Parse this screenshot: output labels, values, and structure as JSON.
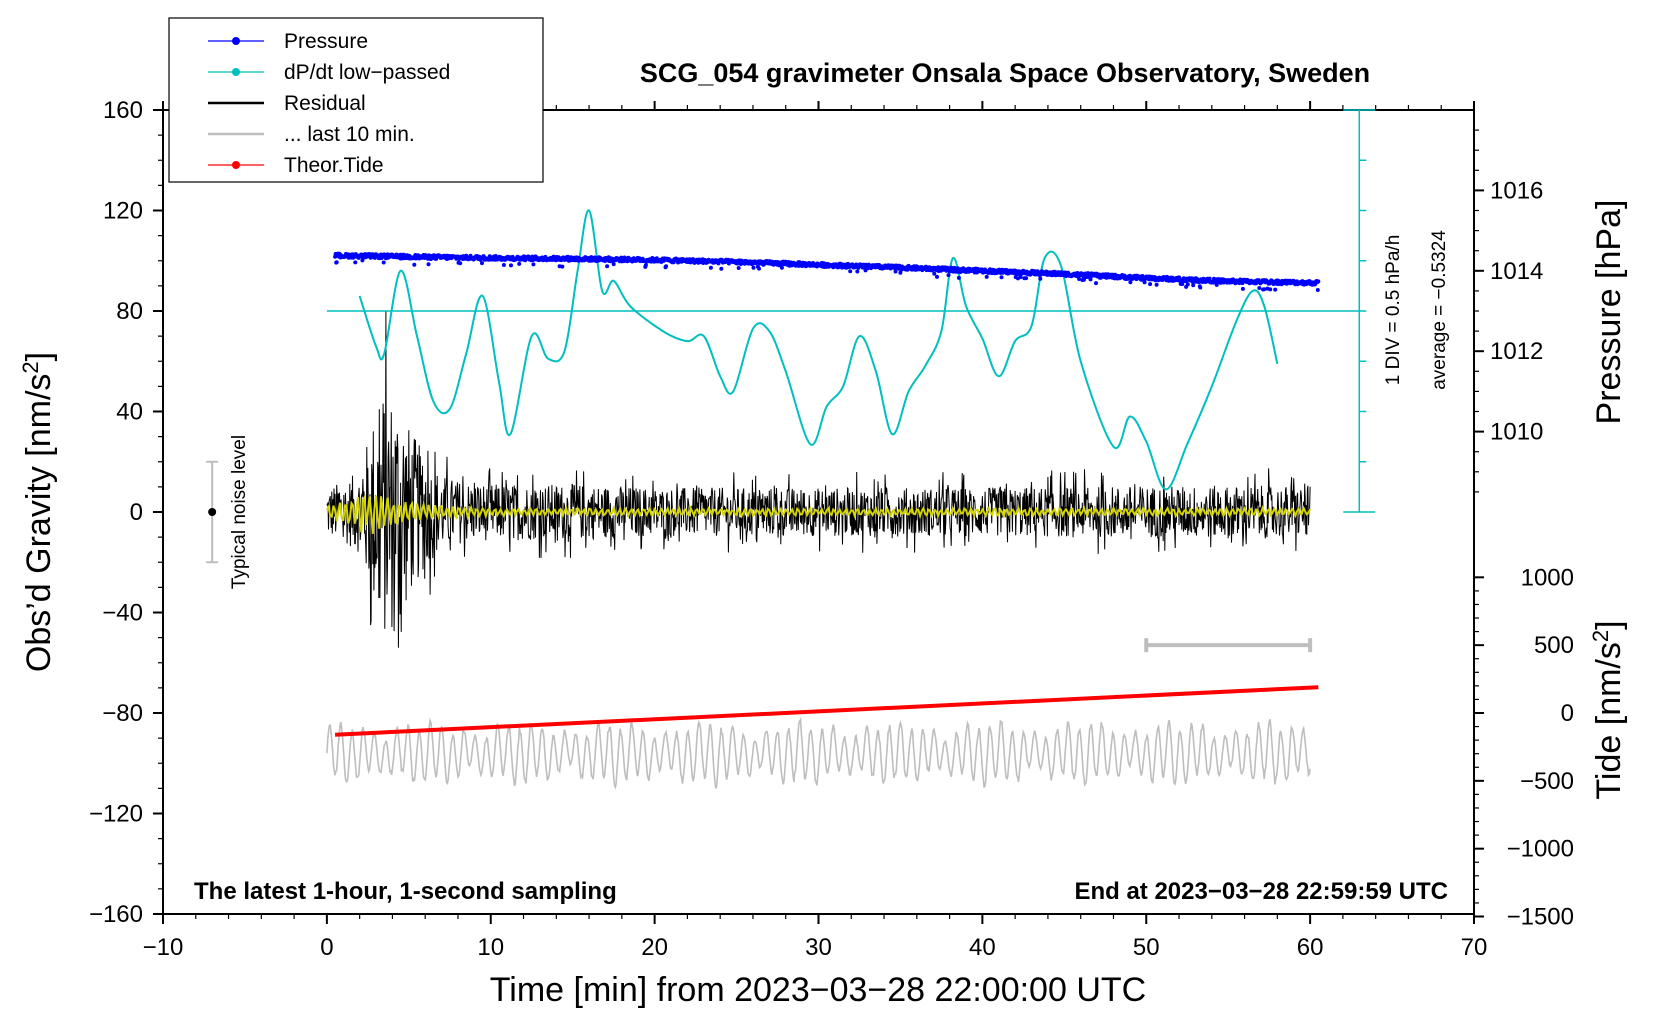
{
  "chart_data": {
    "type": "line",
    "title": "SCG_054 gravimeter Onsala Space Observatory, Sweden",
    "xlabel": "Time [min] from 2023−03−28 22:00:00 UTC",
    "ylabel_left_prefix": "Obs’d Gravity [nm/s",
    "ylabel_right_pressure": "Pressure [hPa]",
    "ylabel_right_tide_prefix": "Tide [nm/s",
    "unit_superscript": "2",
    "unit_suffix": "]",
    "xlim": [
      -10,
      70
    ],
    "ylim_left": [
      -160,
      160
    ],
    "x_ticks": [
      -10,
      0,
      10,
      20,
      30,
      40,
      50,
      60,
      70
    ],
    "x_tick_labels": [
      "−10",
      "0",
      "10",
      "20",
      "30",
      "40",
      "50",
      "60",
      "70"
    ],
    "y_left_ticks": [
      160,
      120,
      80,
      40,
      0,
      -40,
      -80,
      -120,
      -160
    ],
    "y_left_tick_labels": [
      "160",
      "120",
      "80",
      "40",
      "0",
      "−40",
      "−80",
      "−120",
      "−160"
    ],
    "pressure_axis": {
      "ticks": [
        1016,
        1014,
        1012,
        1010
      ],
      "tick_labels": [
        "1016",
        "1014",
        "1012",
        "1010"
      ],
      "map": {
        "hpa_ref": 1014,
        "gravity_at_ref": 96,
        "nm_per_hpa": 16
      }
    },
    "tide_axis": {
      "ticks": [
        1000,
        500,
        0,
        -500,
        -1000,
        -1500
      ],
      "tick_labels": [
        "1000",
        "500",
        "0",
        "−500",
        "−1000",
        "−1500"
      ],
      "map": {
        "tide_ref": 0,
        "gravity_at_ref": -80,
        "per_500": 27
      }
    },
    "bottom_left_note": "The latest 1-hour, 1-second sampling",
    "bottom_right_note": "End at 2023−03−28 22:59:59 UTC",
    "noise_label": "Typical noise level",
    "noise_level": {
      "x": -7,
      "center": 0,
      "half_range": 20
    },
    "dpdt_scale_label": "1 DIV = 0.5 hPa/h",
    "dpdt_average_label": "average = −0.5324",
    "dpdt_reference_level": 80,
    "dpdt_scale": {
      "x": 63,
      "top": 160,
      "bottom": 0,
      "div": 10
    },
    "last10_bar": {
      "x_start": 50,
      "x_end": 60,
      "y": -53
    },
    "legend": [
      {
        "label": "Pressure",
        "color": "#0000ff",
        "style": "line-dot"
      },
      {
        "label": "dP/dt low−passed",
        "color": "#00bfbf",
        "style": "line-dot"
      },
      {
        "label": "Residual",
        "color": "#000000",
        "style": "line"
      },
      {
        "label": "... last 10 min.",
        "color": "#bebebe",
        "style": "line"
      },
      {
        "label": "Theor.Tide",
        "color": "#ff0000",
        "style": "line-dot"
      }
    ],
    "series": [
      {
        "name": "Pressure",
        "color": "#0000ff",
        "axis": "pressure_hpa",
        "x": [
          0.5,
          5,
          10,
          15,
          20,
          25,
          30,
          35,
          40,
          45,
          50,
          55,
          60.5
        ],
        "y": [
          1014.38,
          1014.35,
          1014.32,
          1014.3,
          1014.27,
          1014.22,
          1014.15,
          1014.08,
          1014.0,
          1013.92,
          1013.82,
          1013.74,
          1013.7
        ]
      },
      {
        "name": "dP/dt low−passed",
        "color": "#00bfbf",
        "axis": "gravity_units",
        "x": [
          2,
          3,
          3.5,
          4.5,
          5.5,
          6.5,
          7.5,
          8.5,
          9.5,
          10.5,
          11.2,
          12.5,
          13.5,
          14.5,
          15.3,
          16,
          16.8,
          17.5,
          18.5,
          20.5,
          22,
          23,
          24,
          24.8,
          26,
          27,
          28,
          29.5,
          30.5,
          31.5,
          32.5,
          33.5,
          34.5,
          35.5,
          36.5,
          37.5,
          38.2,
          39,
          40,
          41,
          42,
          43,
          43.8,
          44.8,
          46,
          48,
          49,
          50,
          51.2,
          52.5,
          54,
          55.5,
          56.5,
          57.2,
          58
        ],
        "y": [
          86,
          66,
          63,
          96,
          70,
          44,
          41,
          63,
          86,
          52,
          31,
          70,
          61,
          64,
          96,
          120,
          88,
          92,
          82,
          72,
          68,
          70,
          54,
          48,
          73,
          72,
          56,
          27,
          42,
          50,
          70,
          56,
          31,
          48,
          58,
          72,
          101,
          82,
          69,
          54,
          68,
          74,
          101,
          98,
          60,
          26,
          38,
          28,
          9,
          27,
          50,
          76,
          88,
          82,
          59
        ]
      },
      {
        "name": "Residual",
        "color": "#000000",
        "axis": "gravity_units",
        "x": [
          0,
          1,
          2,
          3,
          3.5,
          4,
          4.5,
          5,
          6,
          7,
          8,
          10,
          15,
          20,
          30,
          40,
          50,
          60
        ],
        "envelope": [
          14,
          16,
          22,
          56,
          68,
          64,
          62,
          46,
          30,
          20,
          17,
          15,
          15,
          13,
          13,
          13,
          14,
          14
        ]
      },
      {
        "name": "Residual low−passed",
        "color": "#d4d400",
        "axis": "gravity_units",
        "x": [
          0,
          1,
          2,
          3,
          4,
          6,
          10,
          60
        ],
        "envelope": [
          3,
          4,
          8,
          9,
          6,
          3,
          1.5,
          1.5
        ]
      },
      {
        "name": "... last 10 min.",
        "color": "#bebebe",
        "axis": "gravity_units",
        "center": -96,
        "amplitude": 11
      },
      {
        "name": "Theor.Tide",
        "color": "#ff0000",
        "axis": "tide",
        "x": [
          0.5,
          60.5
        ],
        "y": [
          -160,
          190
        ]
      }
    ]
  }
}
